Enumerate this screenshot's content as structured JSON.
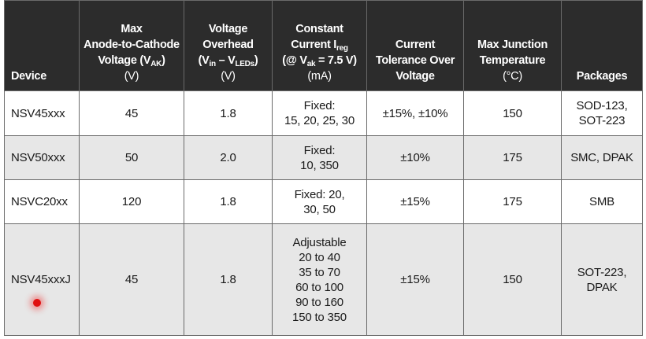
{
  "table": {
    "header": [
      {
        "lines": [
          [
            "Device"
          ]
        ]
      },
      {
        "lines": [
          [
            "Max"
          ],
          [
            "Anode-to-Cathode"
          ],
          [
            "Voltage (V",
            "AK",
            ")"
          ]
        ],
        "unit": "(V)"
      },
      {
        "lines": [
          [
            "Voltage"
          ],
          [
            "Overhead"
          ],
          [
            "(V",
            "in",
            " – V",
            "LEDs",
            ")"
          ]
        ],
        "unit": "(V)"
      },
      {
        "lines": [
          [
            "Constant"
          ],
          [
            "Current I",
            "reg"
          ],
          [
            "(@ V",
            "ak",
            " = 7.5 V)"
          ]
        ],
        "unit": "(mA)"
      },
      {
        "lines": [
          [
            "Current"
          ],
          [
            "Tolerance Over"
          ],
          [
            "Voltage"
          ]
        ]
      },
      {
        "lines": [
          [
            "Max Junction"
          ],
          [
            "Temperature"
          ]
        ],
        "unit": "(°C)"
      },
      {
        "lines": [
          [
            "Packages"
          ]
        ]
      }
    ],
    "rows": [
      [
        [
          "NSV45xxx"
        ],
        [
          "45"
        ],
        [
          "1.8"
        ],
        [
          "Fixed:",
          "15, 20, 25, 30"
        ],
        [
          "±15%, ±10%"
        ],
        [
          "150"
        ],
        [
          "SOD-123,",
          "SOT-223"
        ]
      ],
      [
        [
          "NSV50xxx"
        ],
        [
          "50"
        ],
        [
          "2.0"
        ],
        [
          "Fixed:",
          "10, 350"
        ],
        [
          "±10%"
        ],
        [
          "175"
        ],
        [
          "SMC, DPAK"
        ]
      ],
      [
        [
          "NSVC20xx"
        ],
        [
          "120"
        ],
        [
          "1.8"
        ],
        [
          "Fixed: 20,",
          "30, 50"
        ],
        [
          "±15%"
        ],
        [
          "175"
        ],
        [
          "SMB"
        ]
      ],
      [
        [
          "NSV45xxxJ"
        ],
        [
          "45"
        ],
        [
          "1.8"
        ],
        [
          "Adjustable",
          "20 to 40",
          "35 to 70",
          "60 to 100",
          "90 to 160",
          "150 to 350"
        ],
        [
          "±15%"
        ],
        [
          "150"
        ],
        [
          "SOT-223,",
          "DPAK"
        ]
      ]
    ]
  }
}
